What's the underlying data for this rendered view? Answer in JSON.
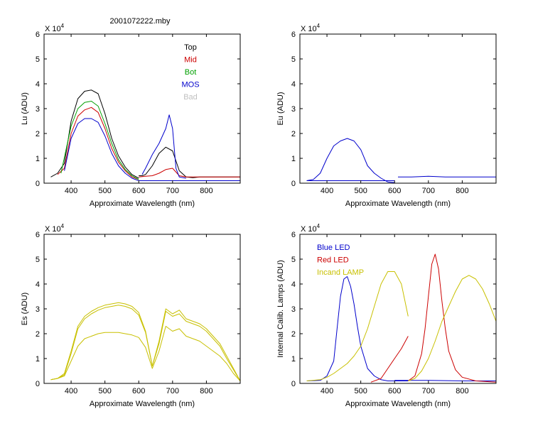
{
  "figure": {
    "title": "2001072222.mby"
  },
  "chart_data": [
    {
      "id": "lu",
      "type": "line",
      "ylabel": "Lu (ADU)",
      "xlabel": "Approximate Wavelength (nm)",
      "multiplier": "X 10",
      "exponent": "4",
      "xlim": [
        320,
        900
      ],
      "ylim": [
        0,
        6
      ],
      "xticks": [
        "400",
        "500",
        "600",
        "700",
        "800"
      ],
      "yticks": [
        "0",
        "1",
        "2",
        "3",
        "4",
        "5",
        "6"
      ],
      "legend": [
        {
          "label": "Top",
          "color": "#000000"
        },
        {
          "label": "Mid",
          "color": "#cc0000"
        },
        {
          "label": "Bot",
          "color": "#00a000"
        },
        {
          "label": "MOS",
          "color": "#0000cc"
        },
        {
          "label": "Bad",
          "color": "#c0c0c0"
        }
      ],
      "series": [
        {
          "name": "Top",
          "color": "#000000",
          "x": [
            340,
            360,
            380,
            400,
            420,
            440,
            460,
            480,
            500,
            520,
            540,
            560,
            580,
            600,
            null,
            600,
            610,
            620,
            640,
            660,
            680,
            700,
            720,
            740,
            760,
            780,
            800,
            820,
            850,
            880,
            900
          ],
          "y": [
            0.25,
            0.4,
            0.8,
            2.5,
            3.4,
            3.7,
            3.75,
            3.6,
            2.8,
            1.8,
            1.1,
            0.65,
            0.35,
            0.2,
            null,
            0.3,
            0.3,
            0.35,
            0.7,
            1.2,
            1.45,
            1.3,
            0.5,
            0.25,
            0.22,
            0.25,
            0.25,
            0.25,
            0.25,
            0.25,
            0.25
          ]
        },
        {
          "name": "Mid",
          "color": "#cc0000",
          "x": [
            360,
            380,
            400,
            420,
            440,
            460,
            480,
            500,
            520,
            540,
            560,
            580,
            600,
            null,
            600,
            620,
            640,
            660,
            680,
            700,
            720,
            740,
            760,
            800,
            850,
            900
          ],
          "y": [
            0.35,
            0.6,
            2.0,
            2.7,
            2.95,
            3.05,
            2.85,
            2.2,
            1.4,
            0.85,
            0.5,
            0.25,
            0.15,
            null,
            0.25,
            0.28,
            0.3,
            0.4,
            0.55,
            0.6,
            0.3,
            0.25,
            0.25,
            0.25,
            0.25,
            0.25
          ]
        },
        {
          "name": "Bot",
          "color": "#00a000",
          "x": [
            370,
            400,
            420,
            440,
            460,
            480,
            500,
            520,
            540,
            560,
            580,
            600
          ],
          "y": [
            0.4,
            2.3,
            3.0,
            3.25,
            3.3,
            3.1,
            2.4,
            1.6,
            0.95,
            0.55,
            0.3,
            0.15
          ]
        },
        {
          "name": "MOS",
          "color": "#0000cc",
          "x": [
            380,
            400,
            420,
            440,
            460,
            480,
            500,
            520,
            540,
            560,
            580,
            600,
            null,
            610,
            620,
            640,
            660,
            680,
            690,
            700,
            710,
            720,
            740,
            null,
            600,
            650,
            700,
            750,
            800,
            850,
            900
          ],
          "y": [
            0.5,
            1.8,
            2.4,
            2.6,
            2.6,
            2.45,
            1.9,
            1.2,
            0.7,
            0.4,
            0.2,
            0.1,
            null,
            0.35,
            0.6,
            1.15,
            1.6,
            2.2,
            2.75,
            2.2,
            0.6,
            0.25,
            0.2,
            null,
            0.1,
            0.1,
            0.1,
            0.1,
            0.1,
            0.1,
            0.1
          ]
        },
        {
          "name": "Bad",
          "color": "#c0c0c0",
          "x": [],
          "y": []
        }
      ]
    },
    {
      "id": "eu",
      "type": "line",
      "ylabel": "Eu  (ADU)",
      "xlabel": "Approximate Wavelength (nm)",
      "multiplier": "X 10",
      "exponent": "4",
      "xlim": [
        320,
        900
      ],
      "ylim": [
        0,
        6
      ],
      "xticks": [
        "400",
        "500",
        "600",
        "700",
        "800"
      ],
      "yticks": [
        "0",
        "1",
        "2",
        "3",
        "4",
        "5",
        "6"
      ],
      "legend": [],
      "series": [
        {
          "name": "",
          "color": "#0000cc",
          "x": [
            340,
            360,
            380,
            400,
            420,
            440,
            460,
            480,
            500,
            520,
            540,
            560,
            580,
            600,
            null,
            610,
            650,
            700,
            750,
            800,
            850,
            900,
            null,
            340,
            400,
            500,
            600
          ],
          "y": [
            0.1,
            0.15,
            0.4,
            1.0,
            1.5,
            1.7,
            1.8,
            1.7,
            1.35,
            0.7,
            0.4,
            0.2,
            0.05,
            0.02,
            null,
            0.25,
            0.25,
            0.28,
            0.25,
            0.25,
            0.25,
            0.25,
            null,
            0.1,
            0.1,
            0.1,
            0.1
          ]
        }
      ]
    },
    {
      "id": "es",
      "type": "line",
      "ylabel": "Es  (ADU)",
      "xlabel": "Approximate Wavelength (nm)",
      "multiplier": "X 10",
      "exponent": "4",
      "xlim": [
        320,
        900
      ],
      "ylim": [
        0,
        6
      ],
      "xticks": [
        "400",
        "500",
        "600",
        "700",
        "800"
      ],
      "yticks": [
        "0",
        "1",
        "2",
        "3",
        "4",
        "5",
        "6"
      ],
      "legend": [],
      "series": [
        {
          "name": "",
          "color": "#c8c000",
          "x": [
            340,
            360,
            380,
            400,
            420,
            440,
            460,
            480,
            500,
            520,
            540,
            560,
            580,
            600,
            620,
            640,
            660,
            680,
            700,
            720,
            740,
            760,
            780,
            800,
            820,
            840,
            860,
            880,
            900
          ],
          "y": [
            0.15,
            0.2,
            0.4,
            1.3,
            2.3,
            2.7,
            2.9,
            3.05,
            3.15,
            3.2,
            3.25,
            3.2,
            3.1,
            2.85,
            2.1,
            0.7,
            1.7,
            3.0,
            2.8,
            2.95,
            2.6,
            2.5,
            2.4,
            2.2,
            1.9,
            1.6,
            1.1,
            0.6,
            0.1
          ]
        },
        {
          "name": "",
          "color": "#c8c000",
          "x": [
            340,
            360,
            380,
            400,
            420,
            440,
            460,
            480,
            500,
            520,
            540,
            560,
            580,
            600,
            620,
            640,
            660,
            680,
            700,
            720,
            740,
            760,
            780,
            800,
            820,
            840,
            860,
            880,
            900
          ],
          "y": [
            0.15,
            0.2,
            0.35,
            1.2,
            2.2,
            2.6,
            2.8,
            2.95,
            3.05,
            3.1,
            3.15,
            3.1,
            3.0,
            2.75,
            2.05,
            0.7,
            1.6,
            2.9,
            2.7,
            2.8,
            2.5,
            2.4,
            2.3,
            2.1,
            1.8,
            1.5,
            1.0,
            0.55,
            0.1
          ]
        },
        {
          "name": "",
          "color": "#c8c000",
          "x": [
            340,
            360,
            380,
            400,
            420,
            440,
            460,
            480,
            500,
            520,
            540,
            560,
            580,
            600,
            620,
            640,
            660,
            680,
            700,
            720,
            740,
            760,
            780,
            800,
            820,
            840,
            860,
            880,
            900
          ],
          "y": [
            0.15,
            0.2,
            0.3,
            0.9,
            1.5,
            1.8,
            1.9,
            2.0,
            2.05,
            2.05,
            2.05,
            2.0,
            1.95,
            1.85,
            1.45,
            0.6,
            1.3,
            2.3,
            2.1,
            2.2,
            1.9,
            1.8,
            1.7,
            1.5,
            1.3,
            1.1,
            0.8,
            0.4,
            0.1
          ]
        }
      ]
    },
    {
      "id": "cal",
      "type": "line",
      "ylabel": "Internal Calib. Lamps (ADU)",
      "xlabel": "Approximate Wavelength (nm)",
      "multiplier": "X 10",
      "exponent": "4",
      "xlim": [
        320,
        900
      ],
      "ylim": [
        0,
        6
      ],
      "xticks": [
        "400",
        "500",
        "600",
        "700",
        "800"
      ],
      "yticks": [
        "0",
        "1",
        "2",
        "3",
        "4",
        "5",
        "6"
      ],
      "legend": [
        {
          "label": "Blue LED",
          "color": "#0000cc"
        },
        {
          "label": "Red LED",
          "color": "#cc0000"
        },
        {
          "label": "Incand LAMP",
          "color": "#c8c000"
        }
      ],
      "series": [
        {
          "name": "Blue LED",
          "color": "#0000cc",
          "x": [
            340,
            380,
            400,
            420,
            430,
            440,
            450,
            460,
            470,
            480,
            490,
            500,
            520,
            540,
            560,
            580,
            600,
            640,
            null,
            600,
            700,
            800,
            900
          ],
          "y": [
            0.1,
            0.12,
            0.3,
            0.9,
            2.2,
            3.5,
            4.2,
            4.3,
            3.9,
            3.2,
            2.3,
            1.5,
            0.6,
            0.3,
            0.15,
            0.1,
            0.1,
            0.1,
            null,
            0.12,
            0.12,
            0.1,
            0.1
          ]
        },
        {
          "name": "Red LED",
          "color": "#cc0000",
          "x": [
            530,
            560,
            580,
            600,
            620,
            640,
            null,
            640,
            660,
            680,
            690,
            700,
            710,
            720,
            730,
            740,
            750,
            760,
            780,
            800,
            840,
            900
          ],
          "y": [
            0.05,
            0.2,
            0.6,
            1.0,
            1.4,
            1.9,
            null,
            0.1,
            0.3,
            1.2,
            2.2,
            3.5,
            4.8,
            5.2,
            4.6,
            3.3,
            2.2,
            1.3,
            0.55,
            0.25,
            0.1,
            0.05
          ]
        },
        {
          "name": "Incand LAMP",
          "color": "#c8c000",
          "x": [
            340,
            380,
            400,
            420,
            440,
            460,
            480,
            500,
            520,
            540,
            560,
            580,
            600,
            620,
            640,
            null,
            640,
            660,
            680,
            700,
            720,
            740,
            760,
            780,
            800,
            820,
            840,
            860,
            880,
            900
          ],
          "y": [
            0.1,
            0.15,
            0.25,
            0.4,
            0.6,
            0.8,
            1.1,
            1.5,
            2.2,
            3.1,
            4.0,
            4.5,
            4.5,
            4.0,
            2.7,
            null,
            0.1,
            0.2,
            0.5,
            1.0,
            1.7,
            2.5,
            3.1,
            3.7,
            4.2,
            4.35,
            4.2,
            3.8,
            3.2,
            2.5
          ]
        }
      ]
    }
  ]
}
